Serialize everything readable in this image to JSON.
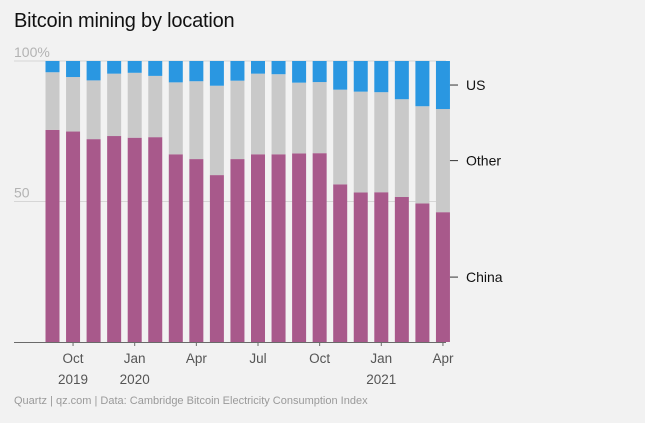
{
  "title": "Bitcoin mining by location",
  "source": "Quartz | qz.com | Data: Cambridge Bitcoin Electricity Consumption Index",
  "colors": {
    "china": "#a8598b",
    "other": "#c9c9c9",
    "us": "#2a97e1",
    "axis": "#6a6a6a",
    "grid": "#d6d6d6",
    "ytick": "#b3b3b3",
    "xtick": "#555555"
  },
  "chart_data": {
    "type": "bar",
    "stacked": true,
    "title": "Bitcoin mining by location",
    "ylim": [
      0,
      100
    ],
    "yticks": [
      {
        "value": 100,
        "label": "100%"
      },
      {
        "value": 50,
        "label": "50"
      }
    ],
    "categories": [
      "Sep 2019",
      "Oct 2019",
      "Nov 2019",
      "Dec 2019",
      "Jan 2020",
      "Feb 2020",
      "Mar 2020",
      "Apr 2020",
      "May 2020",
      "Jun 2020",
      "Jul 2020",
      "Aug 2020",
      "Sep 2020",
      "Oct 2020",
      "Nov 2020",
      "Dec 2020",
      "Jan 2021",
      "Feb 2021",
      "Mar 2021",
      "Apr 2021"
    ],
    "series": [
      {
        "name": "China",
        "values": [
          75.5,
          74.9,
          72.2,
          73.3,
          72.7,
          72.9,
          66.8,
          65.1,
          59.4,
          65.1,
          66.8,
          66.8,
          67.1,
          67.2,
          56.1,
          53.2,
          53.3,
          51.6,
          49.3,
          46.2
        ]
      },
      {
        "name": "Other",
        "values": [
          20.5,
          19.4,
          20.9,
          22.2,
          23.1,
          21.8,
          25.6,
          27.7,
          31.8,
          27.9,
          28.7,
          28.5,
          25.2,
          25.3,
          33.7,
          35.9,
          35.6,
          34.8,
          34.6,
          36.7
        ]
      },
      {
        "name": "US",
        "values": [
          4.0,
          5.7,
          6.9,
          4.5,
          4.2,
          5.3,
          7.6,
          7.2,
          8.8,
          7.0,
          4.5,
          4.7,
          7.7,
          7.5,
          10.2,
          10.9,
          11.1,
          13.6,
          16.1,
          17.1
        ]
      }
    ],
    "xticks": [
      {
        "index": 1,
        "lines": [
          "Oct",
          "2019"
        ]
      },
      {
        "index": 4,
        "lines": [
          "Jan",
          "2020"
        ]
      },
      {
        "index": 7,
        "lines": [
          "Apr"
        ]
      },
      {
        "index": 10,
        "lines": [
          "Jul"
        ]
      },
      {
        "index": 13,
        "lines": [
          "Oct"
        ]
      },
      {
        "index": 16,
        "lines": [
          "Jan",
          "2021"
        ]
      },
      {
        "index": 19,
        "lines": [
          "Apr"
        ]
      }
    ],
    "legend": [
      {
        "series": "US",
        "label": "US"
      },
      {
        "series": "Other",
        "label": "Other"
      },
      {
        "series": "China",
        "label": "China"
      }
    ]
  }
}
